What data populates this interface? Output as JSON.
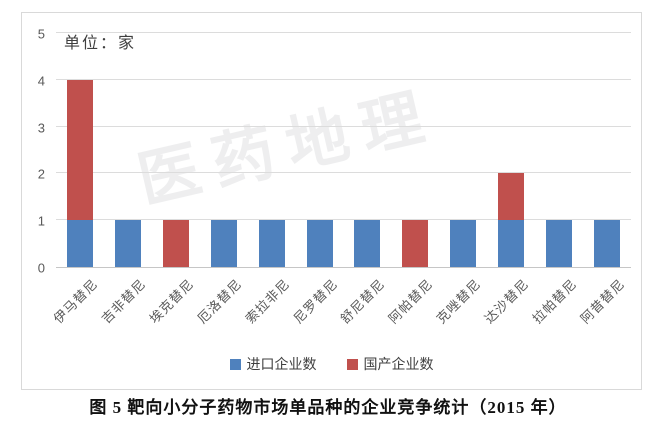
{
  "caption": {
    "text": "图 5 靶向小分子药物市场单品种的企业竞争统计（2015 年）"
  },
  "watermark": {
    "text": "医药地理"
  },
  "chart_data": {
    "type": "bar",
    "stacked": true,
    "title": "图 5 靶向小分子药物市场单品种的企业竞争统计（2015 年）",
    "unit_annotation": "单位：家",
    "categories": [
      "伊马替尼",
      "吉非替尼",
      "埃克替尼",
      "厄洛替尼",
      "索拉非尼",
      "尼罗替尼",
      "舒尼替尼",
      "阿帕替尼",
      "克唑替尼",
      "达沙替尼",
      "拉帕替尼",
      "阿昔替尼"
    ],
    "series": [
      {
        "name": "进口企业数",
        "key": "import",
        "color": "#4f81bd",
        "values": [
          1,
          1,
          0,
          1,
          1,
          1,
          1,
          0,
          1,
          1,
          1,
          1
        ]
      },
      {
        "name": "国产企业数",
        "key": "domestic",
        "color": "#c0504d",
        "values": [
          3,
          0,
          1,
          0,
          0,
          0,
          0,
          1,
          0,
          1,
          0,
          0
        ]
      }
    ],
    "xlabel": "",
    "ylabel": "",
    "ylim": [
      0,
      5
    ],
    "yticks": [
      0,
      1,
      2,
      3,
      4,
      5
    ],
    "grid": true,
    "legend_position": "bottom",
    "xtick_rotation": 45
  }
}
